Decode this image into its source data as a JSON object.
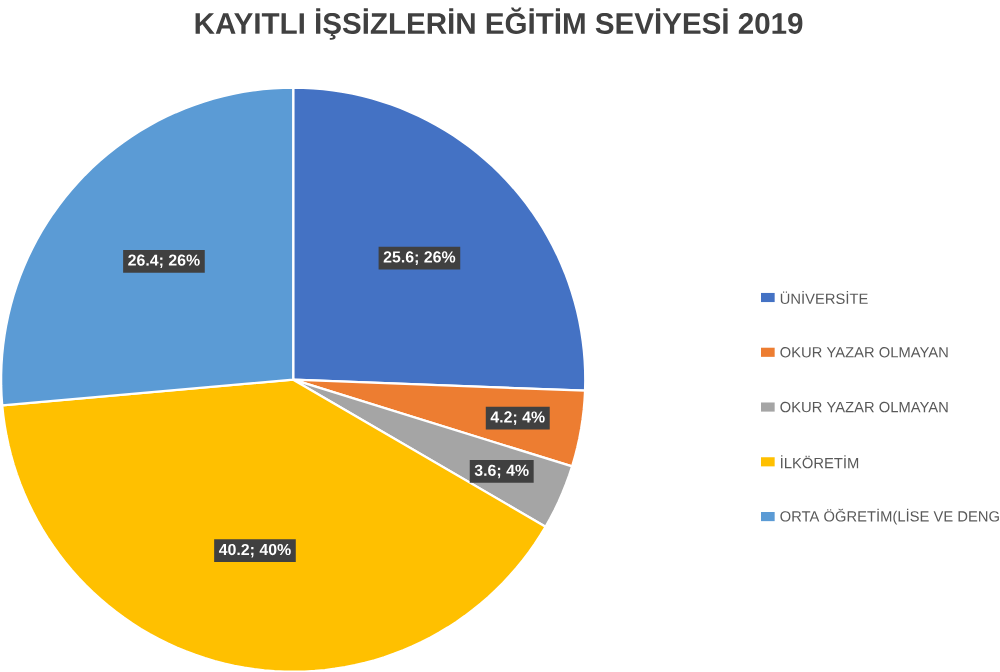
{
  "chart_data": {
    "type": "pie",
    "title": "KAYITLI İŞSİZLERİN EĞİTİM SEVİYESİ 2019",
    "categories": [
      "ÜNİVERSİTE",
      "OKUR YAZAR OLMAYAN",
      "OKUR YAZAR OLMAYAN",
      "İLKÖRETİM",
      "ORTA ÖĞRETİM(LİSE VE DENG"
    ],
    "values": [
      25.6,
      4.2,
      3.6,
      40.2,
      26.4
    ],
    "value_labels": [
      "25.6; 26%",
      "4.2; 4%",
      "3.6; 4%",
      "40.2; 40%",
      "26.4; 26%"
    ],
    "colors": [
      "#4472c4",
      "#ed7d31",
      "#a5a5a5",
      "#ffc000",
      "#5b9bd5"
    ],
    "legend": "right"
  }
}
